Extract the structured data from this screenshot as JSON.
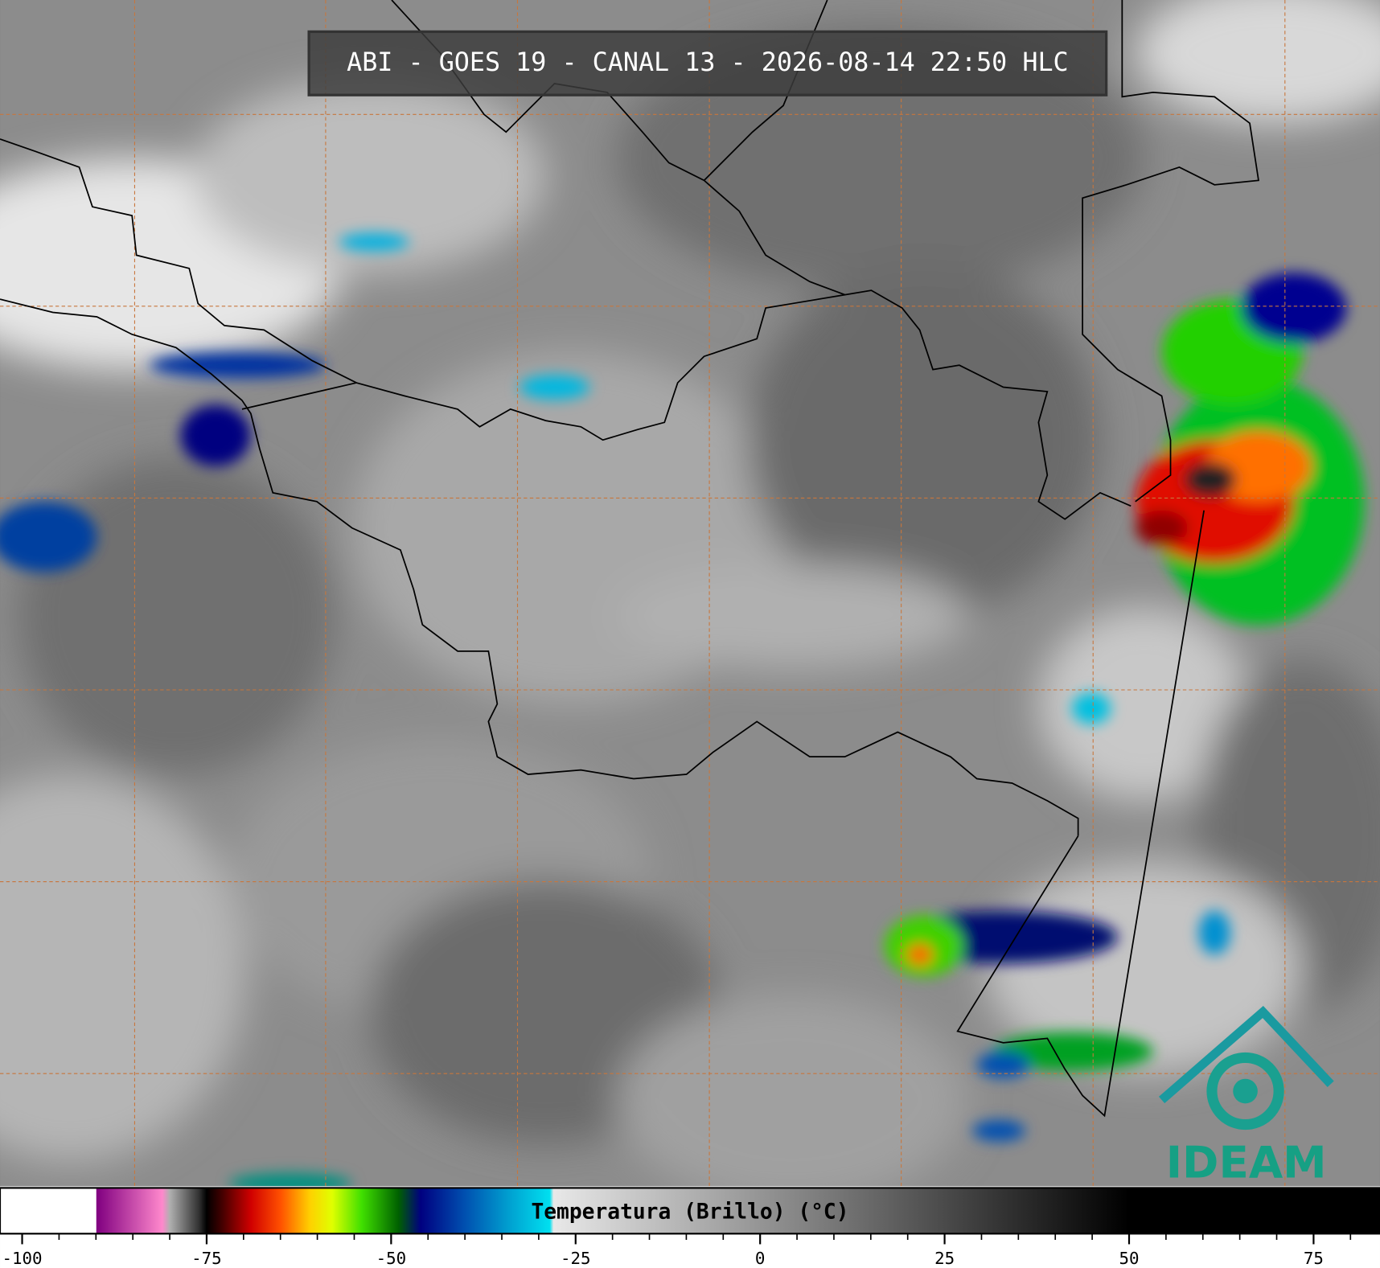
{
  "title": "ABI - GOES 19 - CANAL 13 - 2026-08-14 22:50 HLC",
  "logo": "IDEAM",
  "colorbar": {
    "label": "Temperatura (Brillo) (°C)",
    "range": [
      -103,
      84
    ],
    "ticks": [
      -100,
      -75,
      -50,
      -25,
      0,
      25,
      50,
      75
    ],
    "minor_step": 5,
    "colormap": [
      {
        "value": -103,
        "color": "#ffffff"
      },
      {
        "value": -90,
        "color": "#ffffff"
      },
      {
        "value": -89.9,
        "color": "#800080"
      },
      {
        "value": -81,
        "color": "#ff88cc"
      },
      {
        "value": -80,
        "color": "#b0b0b0"
      },
      {
        "value": -76,
        "color": "#303030"
      },
      {
        "value": -75,
        "color": "#000000"
      },
      {
        "value": -73,
        "color": "#400000"
      },
      {
        "value": -69,
        "color": "#d00000"
      },
      {
        "value": -65,
        "color": "#ff5000"
      },
      {
        "value": -61,
        "color": "#ffd000"
      },
      {
        "value": -58,
        "color": "#e0ff00"
      },
      {
        "value": -54,
        "color": "#40e000"
      },
      {
        "value": -49,
        "color": "#006000"
      },
      {
        "value": -46,
        "color": "#000080"
      },
      {
        "value": -40,
        "color": "#0050b0"
      },
      {
        "value": -34,
        "color": "#00a0d0"
      },
      {
        "value": -28.5,
        "color": "#00e0f0"
      },
      {
        "value": -28,
        "color": "#e8e8e8"
      },
      {
        "value": 50,
        "color": "#000000"
      },
      {
        "value": 84,
        "color": "#000000"
      }
    ]
  }
}
